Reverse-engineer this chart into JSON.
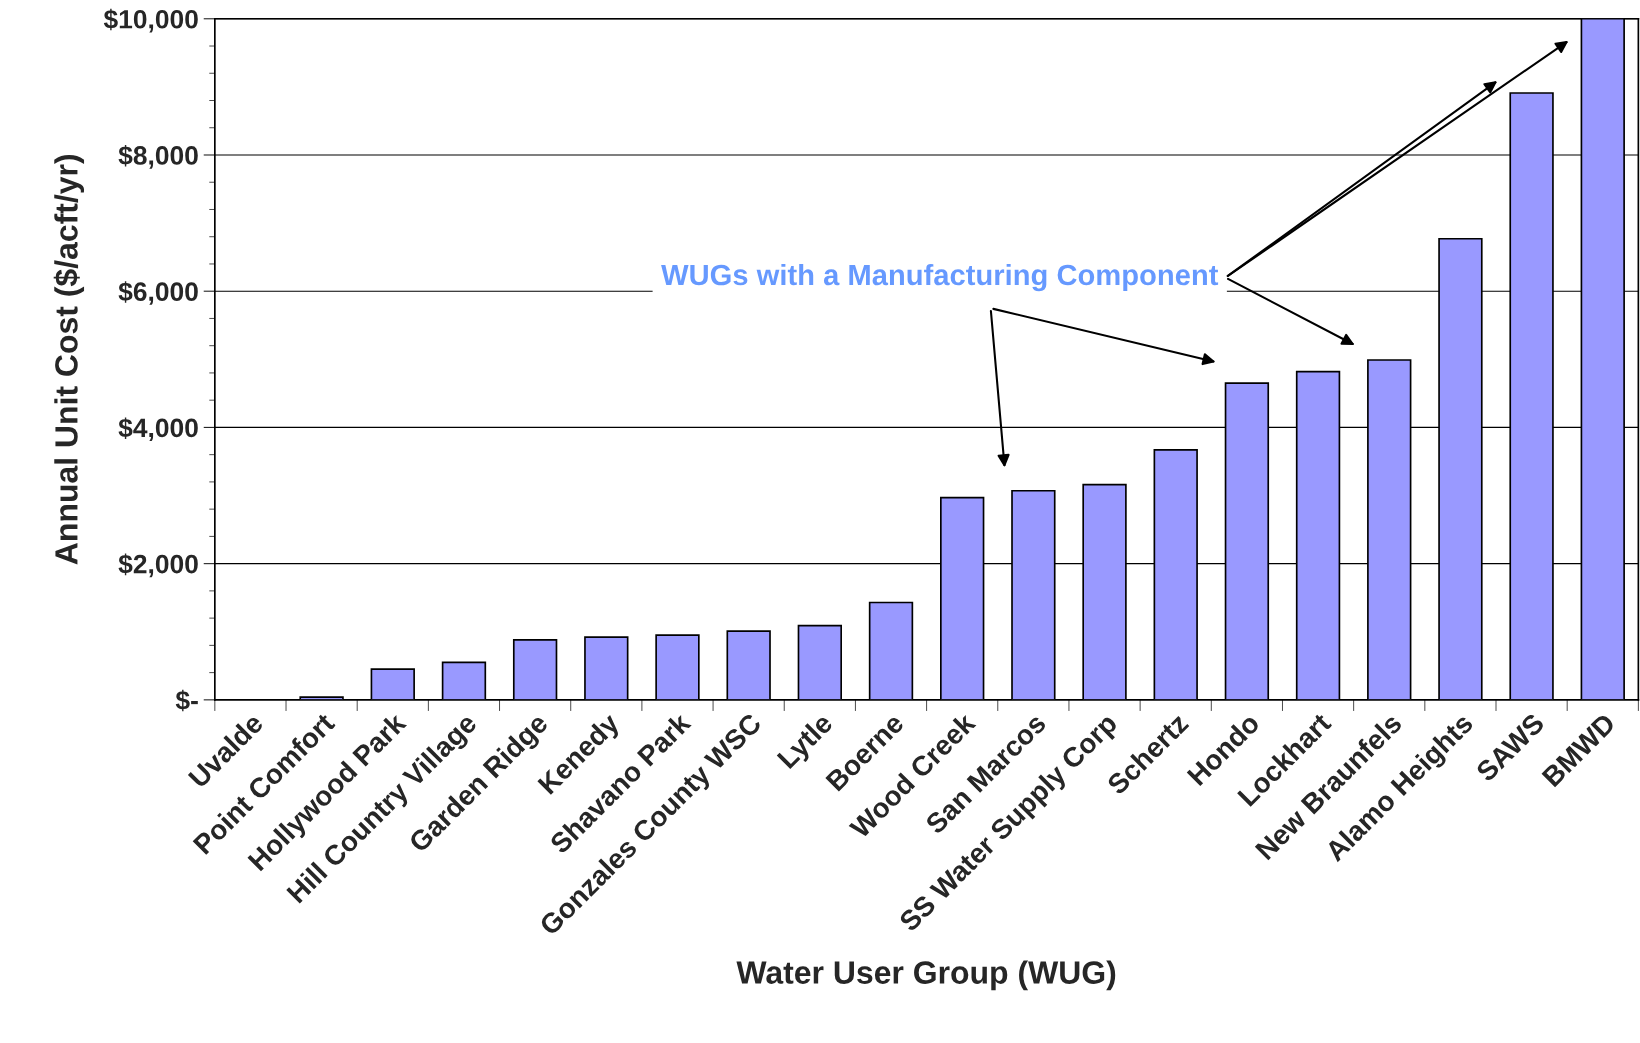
{
  "chart_data": {
    "type": "bar",
    "xlabel": "Water User Group (WUG)",
    "ylabel": "Annual Unit Cost ($/acft/yr)",
    "categories": [
      "Uvalde",
      "Point Comfort",
      "Hollywood Park",
      "Hill Country Village",
      "Garden Ridge",
      "Kenedy",
      "Shavano Park",
      "Gonzales County WSC",
      "Lytle",
      "Boerne",
      "Wood Creek",
      "San Marcos",
      "SS Water Supply Corp",
      "Schertz",
      "Hondo",
      "Lockhart",
      "New Braunfels",
      "Alamo Heights",
      "SAWS",
      "BMWD"
    ],
    "values": [
      0,
      40,
      450,
      550,
      880,
      920,
      950,
      1010,
      1090,
      1430,
      2970,
      3070,
      3160,
      3670,
      4650,
      4820,
      4990,
      6770,
      8910,
      10000
    ],
    "color": "#9999ff",
    "ylim": [
      0,
      10000
    ],
    "yticks": [
      {
        "value": 0,
        "label": "$-"
      },
      {
        "value": 2000,
        "label": "$2,000"
      },
      {
        "value": 4000,
        "label": "$4,000"
      },
      {
        "value": 6000,
        "label": "$6,000"
      },
      {
        "value": 8000,
        "label": "$8,000"
      },
      {
        "value": 10000,
        "label": "$10,000"
      }
    ],
    "grid": "y",
    "legend": false,
    "annotations": [
      "WUGs with a Manufacturing Component"
    ]
  }
}
